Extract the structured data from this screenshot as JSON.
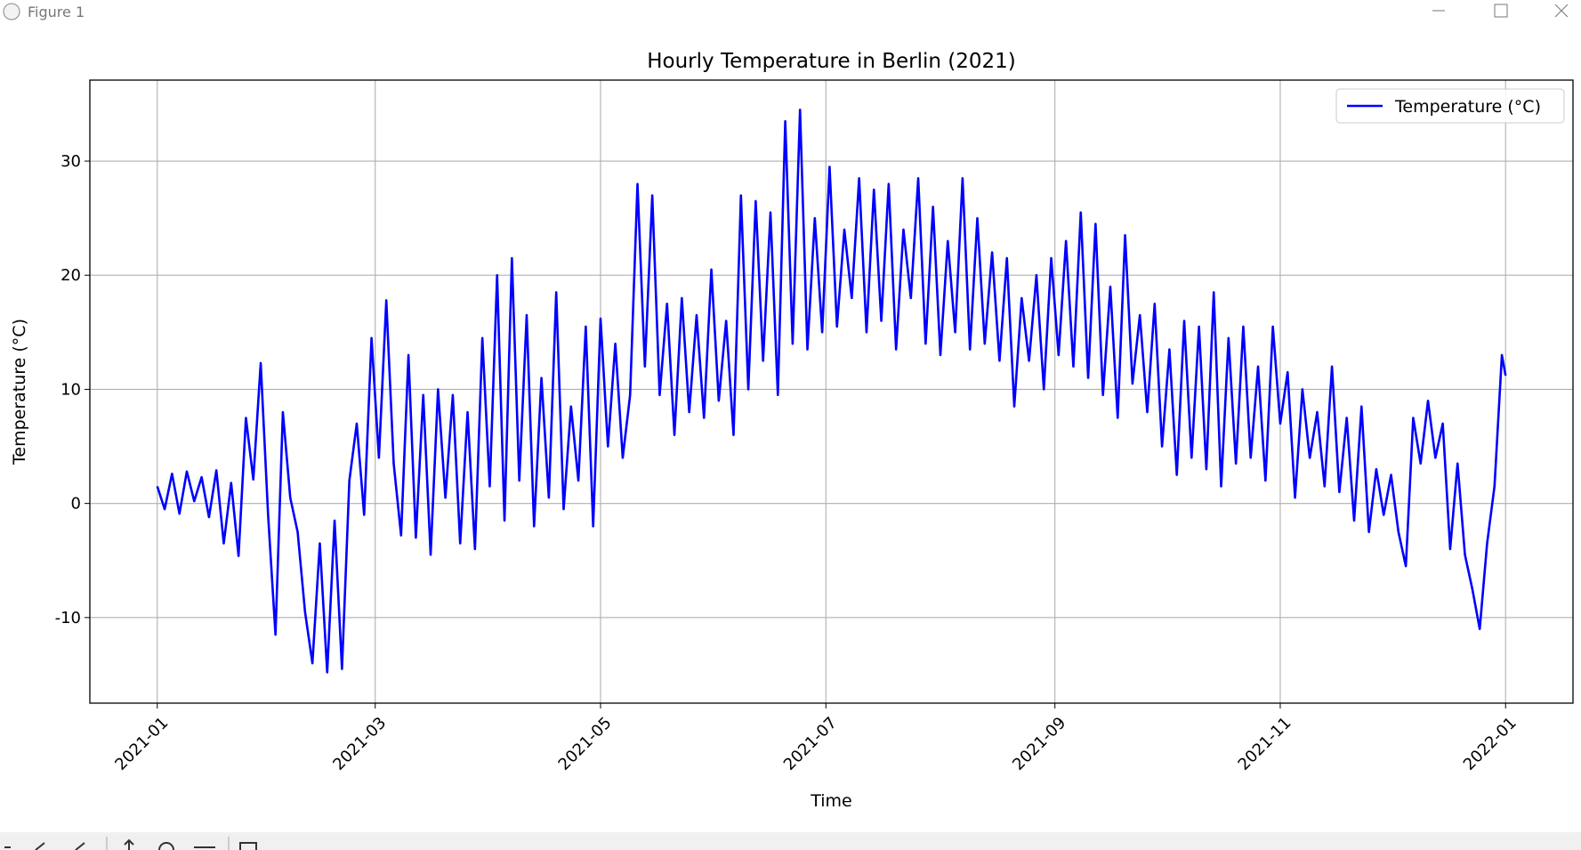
{
  "window_title": "Figure 1",
  "chart_data": {
    "type": "line",
    "title": "Hourly Temperature in Berlin (2021)",
    "xlabel": "Time",
    "ylabel": "Temperature (°C)",
    "x": [
      0,
      2,
      4,
      6,
      8,
      10,
      12,
      14,
      16,
      18,
      20,
      22,
      24,
      26,
      28,
      30,
      32,
      34,
      36,
      38,
      40,
      42,
      44,
      46,
      48,
      50,
      52,
      54,
      56,
      58,
      60,
      62,
      64,
      66,
      68,
      70,
      72,
      74,
      76,
      78,
      80,
      82,
      84,
      86,
      88,
      90,
      92,
      94,
      96,
      98,
      100,
      102,
      104,
      106,
      108,
      110,
      112,
      114,
      116,
      118,
      120,
      122,
      124,
      126,
      128,
      130,
      132,
      134,
      136,
      138,
      140,
      142,
      144,
      146,
      148,
      150,
      152,
      154,
      156,
      158,
      160,
      162,
      164,
      166,
      168,
      170,
      172,
      174,
      176,
      178,
      180,
      182,
      184,
      186,
      188,
      190,
      192,
      194,
      196,
      198,
      200,
      202,
      204,
      206,
      208,
      210,
      212,
      214,
      216,
      218,
      220,
      222,
      224,
      226,
      228,
      230,
      232,
      234,
      236,
      238,
      240,
      242,
      244,
      246,
      248,
      250,
      252,
      254,
      256,
      258,
      260,
      262,
      264,
      266,
      268,
      270,
      272,
      274,
      276,
      278,
      280,
      282,
      284,
      286,
      288,
      290,
      292,
      294,
      296,
      298,
      300,
      302,
      304,
      306,
      308,
      310,
      312,
      314,
      316,
      318,
      320,
      322,
      324,
      326,
      328,
      330,
      332,
      334,
      336,
      338,
      340,
      342,
      344,
      346,
      348,
      350,
      352,
      354,
      356,
      358,
      360,
      362,
      364,
      365
    ],
    "series": [
      {
        "name": "Temperature (°C)",
        "color": "#0000ff",
        "values": [
          1.5,
          -0.5,
          2.6,
          -0.9,
          2.8,
          0.2,
          2.3,
          -1.2,
          2.9,
          -3.5,
          1.8,
          -4.6,
          7.5,
          2.1,
          12.3,
          -1.0,
          -11.5,
          8.0,
          0.5,
          -2.5,
          -9.5,
          -14.0,
          -3.5,
          -14.8,
          -1.5,
          -14.5,
          2.0,
          7.0,
          -1.0,
          14.5,
          4.0,
          17.8,
          3.5,
          -2.8,
          13.0,
          -3.0,
          9.5,
          -4.5,
          10.0,
          0.5,
          9.5,
          -3.5,
          8.0,
          -4.0,
          14.5,
          1.5,
          20.0,
          -1.5,
          21.5,
          2.0,
          16.5,
          -2.0,
          11.0,
          0.5,
          18.5,
          -0.5,
          8.5,
          2.0,
          15.5,
          -2.0,
          16.2,
          5.0,
          14.0,
          4.0,
          9.5,
          28.0,
          12.0,
          27.0,
          9.5,
          17.5,
          6.0,
          18.0,
          8.0,
          16.5,
          7.5,
          20.5,
          9.0,
          16.0,
          6.0,
          27.0,
          10.0,
          26.5,
          12.5,
          25.5,
          9.5,
          33.5,
          14.0,
          34.5,
          13.5,
          25.0,
          15.0,
          29.5,
          15.5,
          24.0,
          18.0,
          28.5,
          15.0,
          27.5,
          16.0,
          28.0,
          13.5,
          24.0,
          18.0,
          28.5,
          14.0,
          26.0,
          13.0,
          23.0,
          15.0,
          28.5,
          13.5,
          25.0,
          14.0,
          22.0,
          12.5,
          21.5,
          8.5,
          18.0,
          12.5,
          20.0,
          10.0,
          21.5,
          13.0,
          23.0,
          12.0,
          25.5,
          11.0,
          24.5,
          9.5,
          19.0,
          7.5,
          23.5,
          10.5,
          16.5,
          8.0,
          17.5,
          5.0,
          13.5,
          2.5,
          16.0,
          4.0,
          15.5,
          3.0,
          18.5,
          1.5,
          14.5,
          3.5,
          15.5,
          4.0,
          12.0,
          2.0,
          15.5,
          7.0,
          11.5,
          0.5,
          10.0,
          4.0,
          8.0,
          1.5,
          12.0,
          1.0,
          7.5,
          -1.5,
          8.5,
          -2.5,
          3.0,
          -1.0,
          2.5,
          -2.5,
          -5.5,
          7.5,
          3.5,
          9.0,
          4.0,
          7.0,
          -4.0,
          3.5,
          -4.5,
          -7.5,
          -11.0,
          -3.5,
          1.5,
          13.0,
          11.2
        ]
      }
    ],
    "xlim": [
      -18.25,
      383.25
    ],
    "xticks": [
      {
        "value": 0,
        "label": "2021-01"
      },
      {
        "value": 59,
        "label": "2021-03"
      },
      {
        "value": 120,
        "label": "2021-05"
      },
      {
        "value": 181,
        "label": "2021-07"
      },
      {
        "value": 243,
        "label": "2021-09"
      },
      {
        "value": 304,
        "label": "2021-11"
      },
      {
        "value": 365,
        "label": "2022-01"
      }
    ],
    "ylim": [
      -17.5,
      37.1
    ],
    "yticks": [
      -10,
      0,
      10,
      20,
      30
    ],
    "grid": true,
    "legend": "upper right"
  }
}
